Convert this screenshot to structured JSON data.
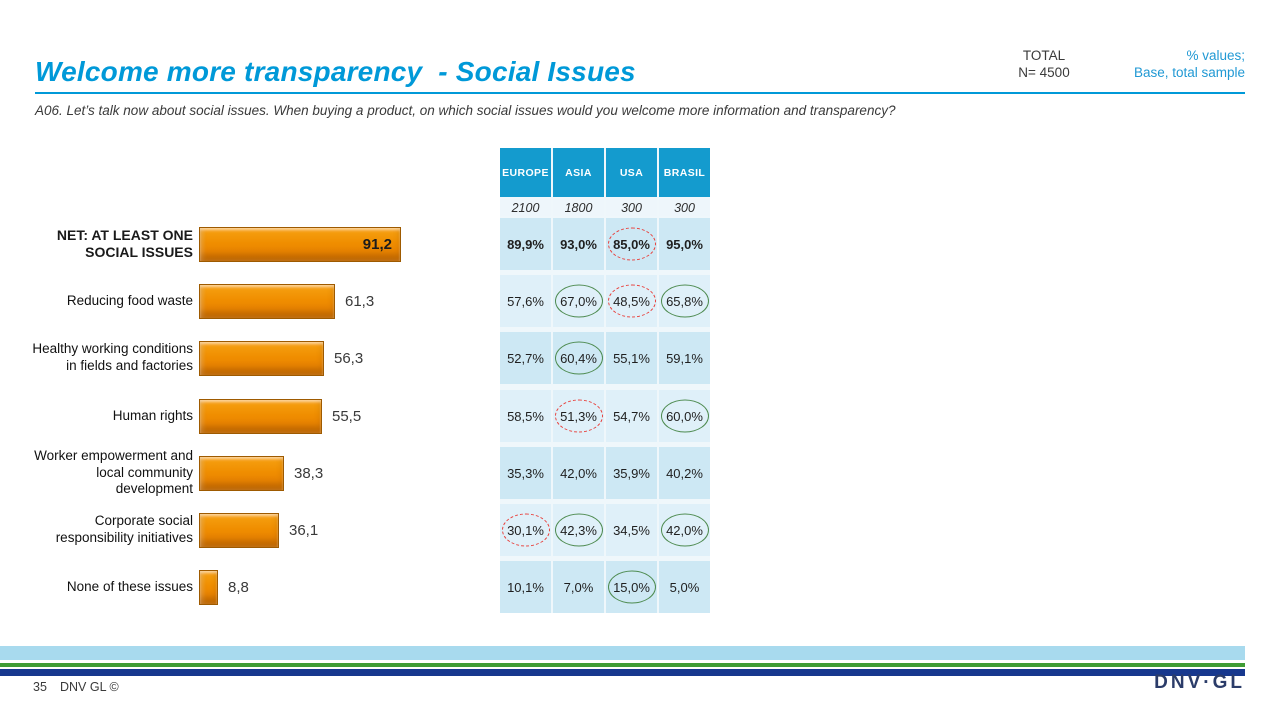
{
  "slide": {
    "title": "Welcome more transparency  - Social Issues",
    "question": "A06. Let’s talk now about social issues. When buying a product, on which social issues would you welcome more information and transparency?",
    "total_label": "TOTAL",
    "total_n": "N= 4500",
    "note_line1": "% values;",
    "note_line2": "Base, total sample",
    "page_number": "35",
    "footer_text": "DNV GL ©",
    "logo_text": "DNV·GL"
  },
  "colors": {
    "title_blue": "#0099D8",
    "note_blue": "#2199D4",
    "table_header_blue": "#149BCE",
    "row_shade_dark": "#CDE8F4",
    "row_shade_light": "#DFF0F9",
    "bar_orange": "#F08E00",
    "ellipse_green": "#4E8B50",
    "ellipse_red": "#E8433F",
    "stripe_sky": "#A8DAEE",
    "stripe_green": "#3F9C35",
    "stripe_navy": "#17388E"
  },
  "chart_data": {
    "type": "bar",
    "orientation": "horizontal",
    "title": "Welcome more transparency - Social Issues",
    "xlabel": "",
    "ylabel": "",
    "xlim": [
      0,
      100
    ],
    "grid": false,
    "categories": [
      "NET: AT LEAST ONE\nSOCIAL ISSUES",
      "Reducing food waste",
      "Healthy working conditions\nin fields and factories",
      "Human rights",
      "Worker empowerment and\nlocal community\ndevelopment",
      "Corporate social\nresponsibility initiatives",
      "None of these issues"
    ],
    "values": [
      91.2,
      61.3,
      56.3,
      55.5,
      38.3,
      36.1,
      8.8
    ],
    "value_labels": [
      "91,2",
      "61,3",
      "56,3",
      "55,5",
      "38,3",
      "36,1",
      "8,8"
    ]
  },
  "table": {
    "columns": [
      "EUROPE",
      "ASIA",
      "USA",
      "BRASIL"
    ],
    "bases": [
      "2100",
      "1800",
      "300",
      "300"
    ],
    "rows": [
      {
        "values": [
          "89,9%",
          "93,0%",
          "85,0%",
          "95,0%"
        ],
        "flags": [
          "",
          "",
          "red",
          ""
        ]
      },
      {
        "values": [
          "57,6%",
          "67,0%",
          "48,5%",
          "65,8%"
        ],
        "flags": [
          "",
          "green",
          "red",
          "green"
        ]
      },
      {
        "values": [
          "52,7%",
          "60,4%",
          "55,1%",
          "59,1%"
        ],
        "flags": [
          "",
          "green",
          "",
          ""
        ]
      },
      {
        "values": [
          "58,5%",
          "51,3%",
          "54,7%",
          "60,0%"
        ],
        "flags": [
          "",
          "red",
          "",
          "green"
        ]
      },
      {
        "values": [
          "35,3%",
          "42,0%",
          "35,9%",
          "40,2%"
        ],
        "flags": [
          "",
          "",
          "",
          ""
        ]
      },
      {
        "values": [
          "30,1%",
          "42,3%",
          "34,5%",
          "42,0%"
        ],
        "flags": [
          "red",
          "green",
          "",
          "green"
        ]
      },
      {
        "values": [
          "10,1%",
          "7,0%",
          "15,0%",
          "5,0%"
        ],
        "flags": [
          "",
          "",
          "green",
          ""
        ]
      }
    ]
  }
}
